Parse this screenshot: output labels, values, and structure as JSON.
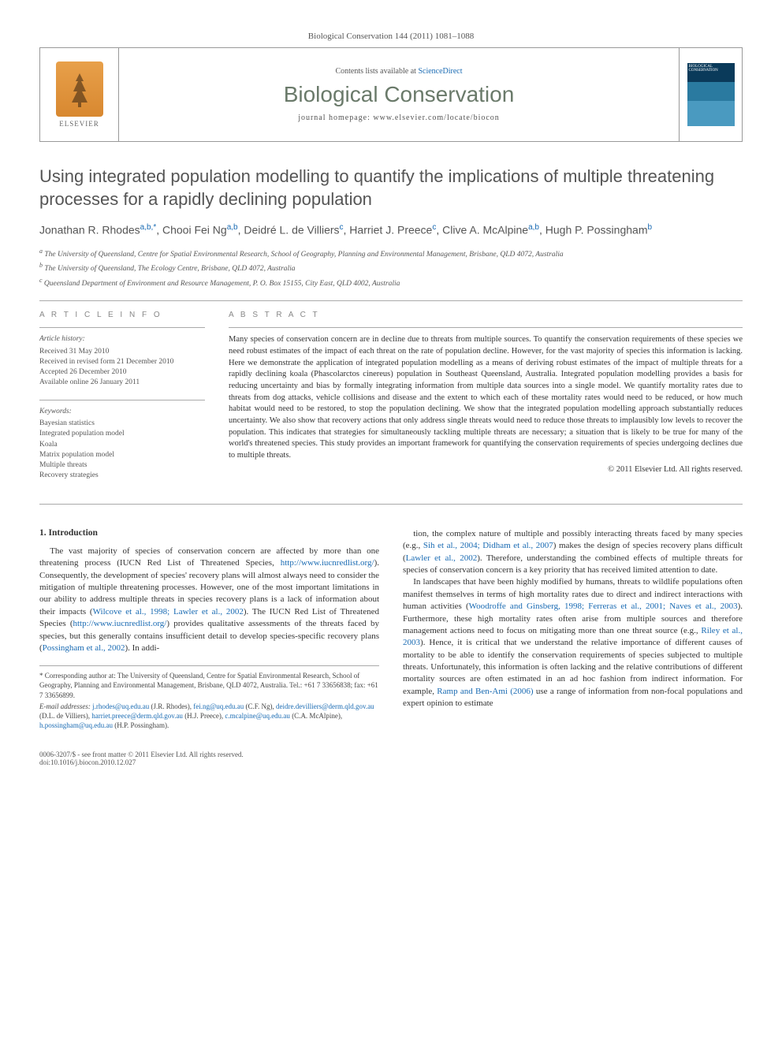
{
  "journal_ref": "Biological Conservation 144 (2011) 1081–1088",
  "header": {
    "contents_prefix": "Contents lists available at ",
    "contents_link": "ScienceDirect",
    "journal_title": "Biological Conservation",
    "homepage": "journal homepage: www.elsevier.com/locate/biocon",
    "elsevier": "ELSEVIER",
    "cover_label": "BIOLOGICAL CONSERVATION"
  },
  "article_title": "Using integrated population modelling to quantify the implications of multiple threatening processes for a rapidly declining population",
  "authors_html": "Jonathan R. Rhodes|a,b,*|, Chooi Fei Ng|a,b|, Deidré L. de Villiers|c|, Harriet J. Preece|c|, Clive A. McAlpine|a,b|, Hugh P. Possingham|b|",
  "affiliations": [
    "a The University of Queensland, Centre for Spatial Environmental Research, School of Geography, Planning and Environmental Management, Brisbane, QLD 4072, Australia",
    "b The University of Queensland, The Ecology Centre, Brisbane, QLD 4072, Australia",
    "c Queensland Department of Environment and Resource Management, P. O. Box 15155, City East, QLD 4002, Australia"
  ],
  "article_info": {
    "heading": "A R T I C L E   I N F O",
    "history_label": "Article history:",
    "history": [
      "Received 31 May 2010",
      "Received in revised form 21 December 2010",
      "Accepted 26 December 2010",
      "Available online 26 January 2011"
    ],
    "keywords_label": "Keywords:",
    "keywords": [
      "Bayesian statistics",
      "Integrated population model",
      "Koala",
      "Matrix population model",
      "Multiple threats",
      "Recovery strategies"
    ]
  },
  "abstract": {
    "heading": "A B S T R A C T",
    "text": "Many species of conservation concern are in decline due to threats from multiple sources. To quantify the conservation requirements of these species we need robust estimates of the impact of each threat on the rate of population decline. However, for the vast majority of species this information is lacking. Here we demonstrate the application of integrated population modelling as a means of deriving robust estimates of the impact of multiple threats for a rapidly declining koala (Phascolarctos cinereus) population in Southeast Queensland, Australia. Integrated population modelling provides a basis for reducing uncertainty and bias by formally integrating information from multiple data sources into a single model. We quantify mortality rates due to threats from dog attacks, vehicle collisions and disease and the extent to which each of these mortality rates would need to be reduced, or how much habitat would need to be restored, to stop the population declining. We show that the integrated population modelling approach substantially reduces uncertainty. We also show that recovery actions that only address single threats would need to reduce those threats to implausibly low levels to recover the population. This indicates that strategies for simultaneously tackling multiple threats are necessary; a situation that is likely to be true for many of the world's threatened species. This study provides an important framework for quantifying the conservation requirements of species undergoing declines due to multiple threats.",
    "copyright": "© 2011 Elsevier Ltd. All rights reserved."
  },
  "section1": {
    "heading": "1. Introduction",
    "col1": "The vast majority of species of conservation concern are affected by more than one threatening process (IUCN Red List of Threatened Species, |http://www.iucnredlist.org/|). Consequently, the development of species' recovery plans will almost always need to consider the mitigation of multiple threatening processes. However, one of the most important limitations in our ability to address multiple threats in species recovery plans is a lack of information about their impacts (|Wilcove et al., 1998; Lawler et al., 2002|). The IUCN Red List of Threatened Species (|http://www.iucnredlist.org/|) provides qualitative assessments of the threats faced by species, but this generally contains insufficient detail to develop species-specific recovery plans (|Possingham et al., 2002|). In addi-",
    "col2_p1": "tion, the complex nature of multiple and possibly interacting threats faced by many species (e.g., |Sih et al., 2004; Didham et al., 2007|) makes the design of species recovery plans difficult (|Lawler et al., 2002|). Therefore, understanding the combined effects of multiple threats for species of conservation concern is a key priority that has received limited attention to date.",
    "col2_p2": "In landscapes that have been highly modified by humans, threats to wildlife populations often manifest themselves in terms of high mortality rates due to direct and indirect interactions with human activities (|Woodroffe and Ginsberg, 1998; Ferreras et al., 2001; Naves et al., 2003|). Furthermore, these high mortality rates often arise from multiple sources and therefore management actions need to focus on mitigating more than one threat source (e.g., |Riley et al., 2003|). Hence, it is critical that we understand the relative importance of different causes of mortality to be able to identify the conservation requirements of species subjected to multiple threats. Unfortunately, this information is often lacking and the relative contributions of different mortality sources are often estimated in an ad hoc fashion from indirect information. For example, |Ramp and Ben-Ami (2006)| use a range of information from non-focal populations and expert opinion to estimate"
  },
  "footnotes": {
    "corresponding": "* Corresponding author at: The University of Queensland, Centre for Spatial Environmental Research, School of Geography, Planning and Environmental Management, Brisbane, QLD 4072, Australia. Tel.: +61 7 33656838; fax: +61 7 33656899.",
    "email_label": "E-mail addresses:",
    "emails": "|j.rhodes@uq.edu.au| (J.R. Rhodes), |fei.ng@uq.edu.au| (C.F. Ng), |deidre.devilliers@derm.qld.gov.au| (D.L. de Villiers), |harriet.preece@derm.qld.gov.au| (H.J. Preece), |c.mcalpine@uq.edu.au| (C.A. McAlpine), |h.possingham@uq.edu.au| (H.P. Possingham)."
  },
  "footer": {
    "left1": "0006-3207/$ - see front matter © 2011 Elsevier Ltd. All rights reserved.",
    "left2": "doi:10.1016/j.biocon.2010.12.027"
  },
  "colors": {
    "link": "#1a6bb3",
    "journal_title": "#6a7a6a",
    "heading_gray": "#888888",
    "text": "#333333",
    "rule": "#aaaaaa"
  },
  "typography": {
    "body_font": "Georgia, Times New Roman, serif",
    "sans_font": "Helvetica Neue, Arial, sans-serif",
    "title_size_pt": 22,
    "journal_title_size_pt": 28,
    "abstract_size_pt": 10.5,
    "body_size_pt": 11,
    "info_size_pt": 9.5
  }
}
